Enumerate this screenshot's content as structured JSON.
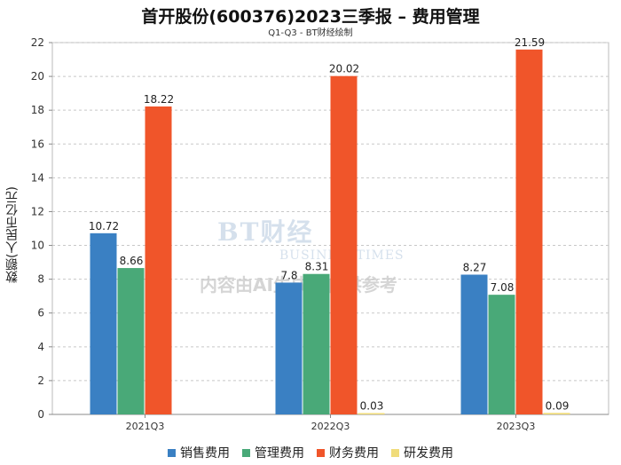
{
  "header": {
    "title": "首开股份(600376)2023三季报 – 费用管理",
    "subtitle": "Q1-Q3 - BT财经绘制"
  },
  "watermark": {
    "logo": "BT财经",
    "brand": "BUSINESSTIMES",
    "note": "内容由AI生成，仅供参考"
  },
  "chart_data": {
    "type": "bar",
    "categories": [
      "2021Q3",
      "2022Q3",
      "2023Q3"
    ],
    "series": [
      {
        "name": "销售费用",
        "color": "#3a80c3",
        "values": [
          10.72,
          7.8,
          8.27
        ]
      },
      {
        "name": "管理费用",
        "color": "#49a978",
        "values": [
          8.66,
          8.31,
          7.08
        ]
      },
      {
        "name": "财务费用",
        "color": "#f0552a",
        "values": [
          18.22,
          20.02,
          21.59
        ]
      },
      {
        "name": "研发费用",
        "color": "#f0dc7a",
        "values": [
          null,
          0.03,
          0.09
        ]
      }
    ],
    "ylabel": "数额(人民币亿元)",
    "ylim": [
      0,
      22
    ],
    "yticks": [
      0,
      2,
      4,
      6,
      8,
      10,
      12,
      14,
      16,
      18,
      20,
      22
    ],
    "grid": true,
    "legend_position": "bottom"
  }
}
